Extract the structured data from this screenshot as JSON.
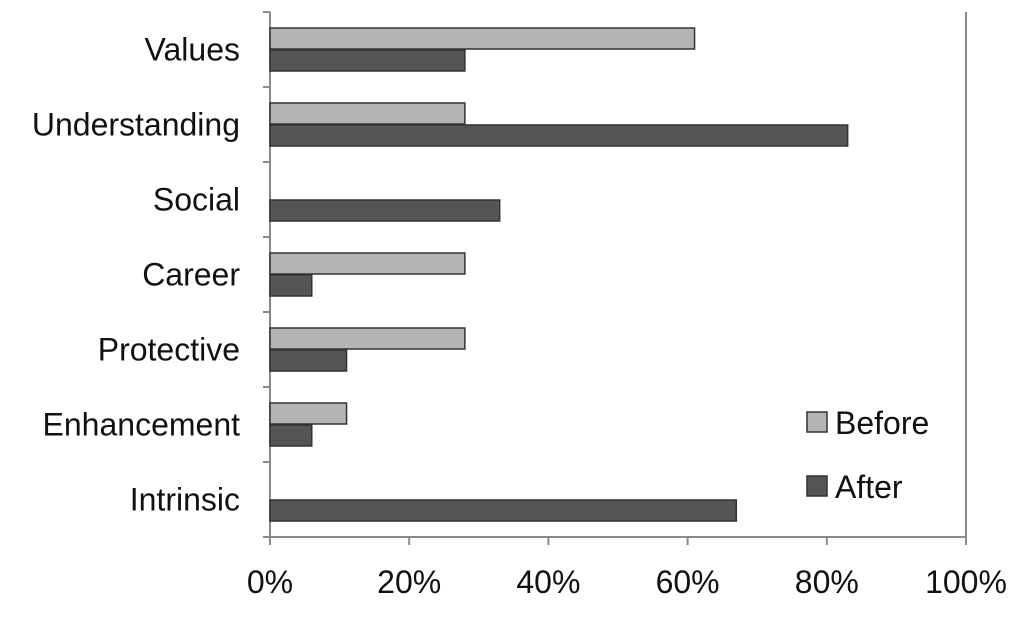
{
  "chart_data": {
    "type": "bar",
    "orientation": "horizontal",
    "categories": [
      "Values",
      "Understanding",
      "Social",
      "Career",
      "Protective",
      "Enhancement",
      "Intrinsic"
    ],
    "series": [
      {
        "name": "Before",
        "values": [
          61,
          28,
          0,
          28,
          28,
          11,
          0
        ]
      },
      {
        "name": "After",
        "values": [
          28,
          83,
          33,
          6,
          11,
          6,
          67
        ]
      }
    ],
    "xlim": [
      0,
      100
    ],
    "x_ticks": [
      "0%",
      "20%",
      "40%",
      "60%",
      "80%",
      "100%"
    ],
    "x_tick_values": [
      0,
      20,
      40,
      60,
      80,
      100
    ],
    "grid": false,
    "legend_position": "bottom-right",
    "colors": {
      "Before": "#b4b4b4",
      "After": "#555555",
      "outline": "#333333",
      "axis": "#8a8a8a"
    }
  }
}
